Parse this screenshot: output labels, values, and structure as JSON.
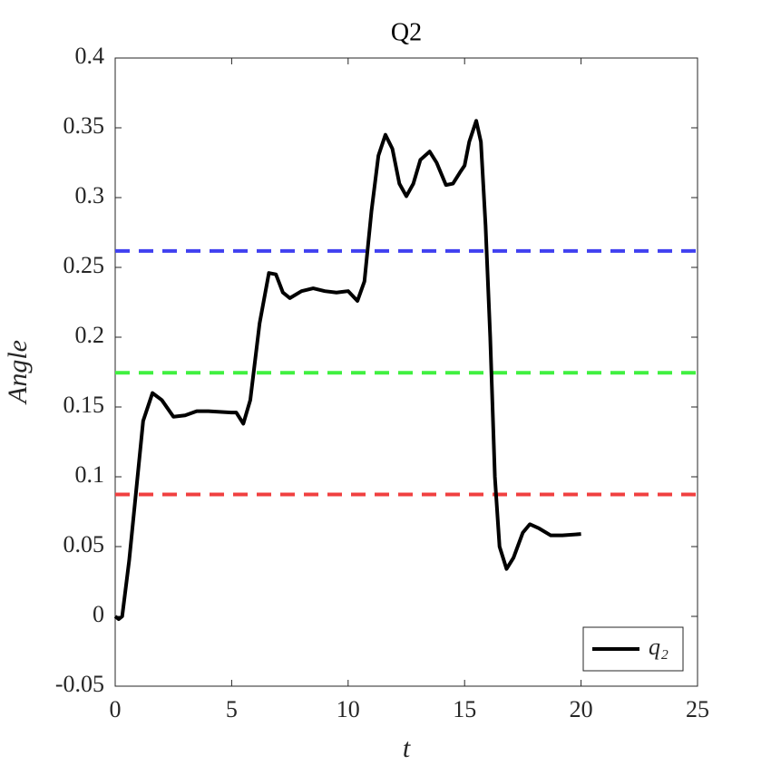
{
  "chart_data": {
    "type": "line",
    "title": "Q2",
    "x_label": "t",
    "y_label": "Angle",
    "x": [
      0,
      0.15,
      0.3,
      0.6,
      0.9,
      1.2,
      1.6,
      2.0,
      2.5,
      3.0,
      3.5,
      4.0,
      5.0,
      5.2,
      5.5,
      5.8,
      6.2,
      6.6,
      6.9,
      7.2,
      7.5,
      8.0,
      8.5,
      9.0,
      9.5,
      10.0,
      10.4,
      10.7,
      11.0,
      11.3,
      11.6,
      11.9,
      12.2,
      12.5,
      12.8,
      13.1,
      13.5,
      13.8,
      14.2,
      14.5,
      14.8,
      15.0,
      15.2,
      15.5,
      15.7,
      15.9,
      16.1,
      16.3,
      16.5,
      16.8,
      17.1,
      17.5,
      17.8,
      18.2,
      18.7,
      19.2,
      20.0
    ],
    "series": [
      {
        "name": "q₂",
        "color": "#000000",
        "values": [
          0.0,
          -0.002,
          0.0,
          0.04,
          0.09,
          0.14,
          0.16,
          0.155,
          0.143,
          0.144,
          0.147,
          0.147,
          0.146,
          0.146,
          0.138,
          0.155,
          0.21,
          0.246,
          0.245,
          0.232,
          0.228,
          0.233,
          0.235,
          0.233,
          0.232,
          0.233,
          0.226,
          0.24,
          0.29,
          0.33,
          0.345,
          0.335,
          0.31,
          0.301,
          0.31,
          0.327,
          0.333,
          0.325,
          0.309,
          0.31,
          0.318,
          0.323,
          0.34,
          0.355,
          0.34,
          0.28,
          0.2,
          0.1,
          0.05,
          0.034,
          0.042,
          0.06,
          0.066,
          0.063,
          0.058,
          0.058,
          0.059
        ]
      }
    ],
    "hlines": [
      {
        "value": 0.2618,
        "color": "#4040f0"
      },
      {
        "value": 0.1745,
        "color": "#40f040"
      },
      {
        "value": 0.0873,
        "color": "#f04040"
      }
    ],
    "xlim": [
      0,
      25
    ],
    "xticks": [
      0,
      5,
      10,
      15,
      20,
      25
    ],
    "ylim": [
      -0.05,
      0.4
    ],
    "yticks": [
      -0.05,
      0,
      0.05,
      0.1,
      0.15,
      0.2,
      0.25,
      0.3,
      0.35,
      0.4
    ],
    "legend": "lower right"
  }
}
